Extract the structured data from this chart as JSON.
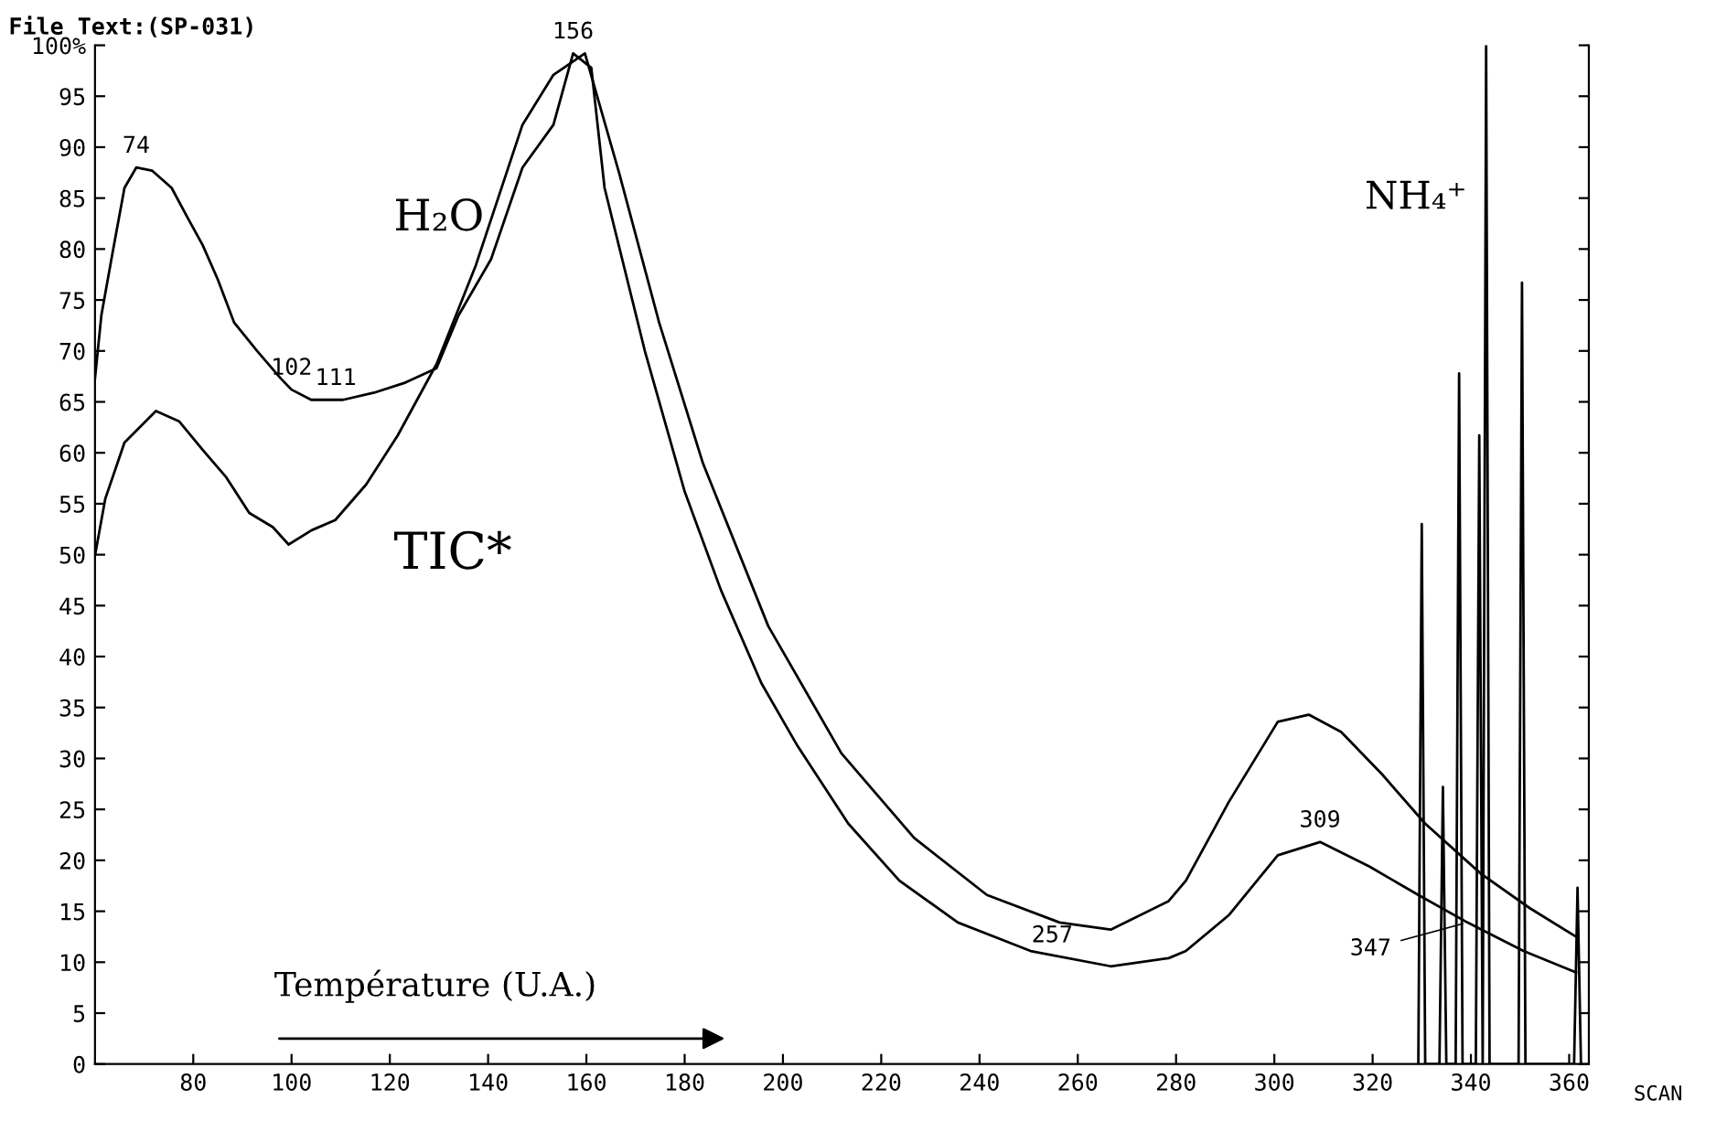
{
  "chart_data": {
    "type": "line",
    "xlabel": "SCAN",
    "xlim": [
      60,
      364
    ],
    "ylim": [
      0,
      100
    ],
    "xticks": [
      80,
      100,
      120,
      140,
      160,
      180,
      200,
      220,
      240,
      260,
      280,
      300,
      320,
      340,
      360
    ],
    "yticks": [
      0,
      5,
      10,
      15,
      20,
      25,
      30,
      35,
      40,
      45,
      50,
      55,
      60,
      65,
      70,
      75,
      80,
      85,
      90,
      95,
      {
        "value": 100,
        "label": "100%"
      }
    ],
    "grid": false,
    "legend": false,
    "marker": "none",
    "line_style": "solid",
    "series": [
      {
        "name": "H₂O",
        "color": "#000000",
        "x": [
          60,
          61.3,
          63.6,
          66,
          68.4,
          71.6,
          75.6,
          78.7,
          81.9,
          85,
          88.3,
          93,
          97.8,
          100,
          104,
          110.5,
          116.8,
          123.2,
          129.5,
          134,
          140.6,
          147,
          153.3,
          157.3,
          161,
          163.7,
          171.9,
          180,
          187.4,
          195.6,
          203,
          213.3,
          223.7,
          235.6,
          250.4,
          266.7,
          278.5,
          282,
          290.7,
          300.7,
          309.3,
          319.3,
          329.3,
          339.3,
          350.7,
          361.4
        ],
        "values": [
          67.3,
          73.5,
          79.7,
          86,
          88,
          87.7,
          86,
          83.2,
          80.4,
          77,
          72.8,
          70,
          67.3,
          66.2,
          65.2,
          65.2,
          65.9,
          66.9,
          68.3,
          73.5,
          79,
          88,
          92.2,
          99.2,
          97.8,
          86,
          70,
          56.2,
          46.5,
          37.4,
          31.2,
          23.6,
          18,
          13.9,
          11.1,
          9.6,
          10.4,
          11.1,
          14.6,
          20.5,
          21.8,
          19.4,
          16.6,
          13.9,
          11.1,
          9
        ]
      },
      {
        "name": "TIC*",
        "color": "#000000",
        "x": [
          60,
          62.1,
          66,
          72.4,
          77.1,
          81.9,
          86.7,
          91.4,
          96.2,
          99.4,
          104.1,
          108.9,
          115.2,
          121.6,
          129.5,
          137.5,
          147,
          153.3,
          159.7,
          166.7,
          174.8,
          183.7,
          197,
          211.9,
          226.7,
          241.5,
          256.3,
          266.7,
          278.5,
          282,
          290.7,
          300.7,
          307,
          313.6,
          322,
          330.7,
          342,
          352,
          361.4
        ],
        "values": [
          49.9,
          55.5,
          61,
          64.1,
          63.1,
          60.3,
          57.6,
          54.1,
          52.7,
          51,
          52.4,
          53.4,
          56.9,
          61.7,
          68.7,
          78.4,
          92.2,
          97.1,
          99.2,
          87.4,
          72.8,
          59,
          43,
          30.5,
          22.2,
          16.6,
          13.9,
          13.2,
          16,
          18,
          25.7,
          33.6,
          34.3,
          32.6,
          28.4,
          23.6,
          18.7,
          15.3,
          12.5
        ]
      },
      {
        "name": "NH₄⁺",
        "color": "#000000",
        "x": [
          329.3,
          330,
          330.7,
          333.6,
          334.3,
          335,
          336.9,
          337.6,
          338.3,
          341,
          341.7,
          342.4,
          342.4,
          343.1,
          343.8,
          349.7,
          350.4,
          351.1,
          361,
          361.7,
          362.4
        ],
        "values": [
          0,
          53,
          0,
          0,
          27.2,
          0,
          0,
          67.8,
          0,
          0,
          61.7,
          0,
          0,
          100,
          0,
          0,
          76.7,
          0,
          0,
          17.3,
          0
        ]
      }
    ],
    "annotations": [
      "File Text:(SP-031)",
      "Température (U.A.)",
      {
        "text": "74",
        "x": 68.4,
        "y": 88
      },
      {
        "text": "102",
        "x": 100,
        "y": 66.2
      },
      {
        "text": "111",
        "x": 109,
        "y": 65.2
      },
      {
        "text": "156",
        "x": 157.3,
        "y": 99.2
      },
      {
        "text": "257",
        "x": 254.8,
        "y": 10.5
      },
      {
        "text": "309",
        "x": 309.3,
        "y": 21.8
      },
      {
        "text": "347",
        "x": 339.3,
        "y": 13.9
      }
    ]
  }
}
